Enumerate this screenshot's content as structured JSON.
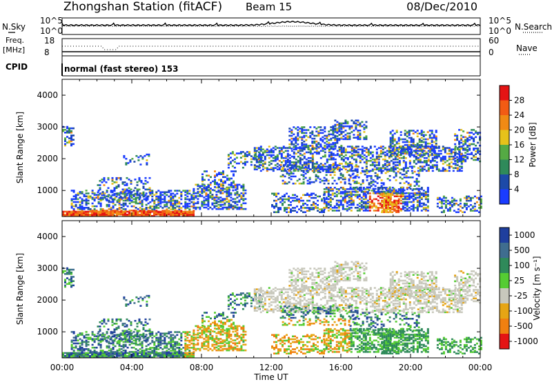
{
  "header": {
    "station": "Zhongshan Station (fitACF)",
    "beam": "Beam 15",
    "date": "08/Dec/2010"
  },
  "noise_panel": {
    "left_label": "N.Sky",
    "left_ticks": [
      "10^5",
      "10^0"
    ],
    "right_label": "N.Search",
    "right_ticks": [
      "10^5",
      "10^0"
    ]
  },
  "freq_panel": {
    "left_label_1": "Freq.",
    "left_label_2": "[MHz]",
    "left_ticks": [
      "18",
      "8"
    ],
    "right_label": "Nave",
    "right_ticks": [
      "60",
      "0"
    ]
  },
  "cpid_panel": {
    "label": "CPID",
    "text": "normal (fast stereo) 153"
  },
  "colors": {
    "power": [
      "#1a3cff",
      "#1d4aa8",
      "#2f8a5a",
      "#55aa44",
      "#e6c21a",
      "#f08a14",
      "#f25b14",
      "#e41414"
    ],
    "velocity": [
      "#1f3f9e",
      "#3f6d8f",
      "#2f8a5a",
      "#55cc33",
      "#c8c8bc",
      "#e6a514",
      "#f08010",
      "#e41414"
    ],
    "ground_scatter": "#c8c8bc"
  },
  "chart_data": [
    {
      "type": "heatmap",
      "name": "power",
      "ylabel": "Slant Range [km]",
      "yticks": [
        "1000",
        "2000",
        "3000",
        "4000"
      ],
      "ylim": [
        180,
        4500
      ],
      "xlim": [
        0,
        24
      ],
      "colorbar_label": "Power [dB]",
      "colorbar_ticks": [
        "4",
        "8",
        "12",
        "16",
        "20",
        "24",
        "28"
      ],
      "colorbar_range": [
        0,
        32
      ]
    },
    {
      "type": "heatmap",
      "name": "velocity",
      "ylabel": "Slant Range [km]",
      "yticks": [
        "1000",
        "2000",
        "3000",
        "4000"
      ],
      "ylim": [
        180,
        4500
      ],
      "xlim": [
        0,
        24
      ],
      "colorbar_label": "Velocity [m s⁻¹]",
      "colorbar_ticks": [
        "1000",
        "500",
        "100",
        "25",
        "-25",
        "-100",
        "-500",
        "-1000"
      ]
    }
  ],
  "xaxis": {
    "ticks": [
      "00:00",
      "04:00",
      "08:00",
      "12:00",
      "16:00",
      "20:00",
      "00:00"
    ],
    "label": "Time UT"
  }
}
